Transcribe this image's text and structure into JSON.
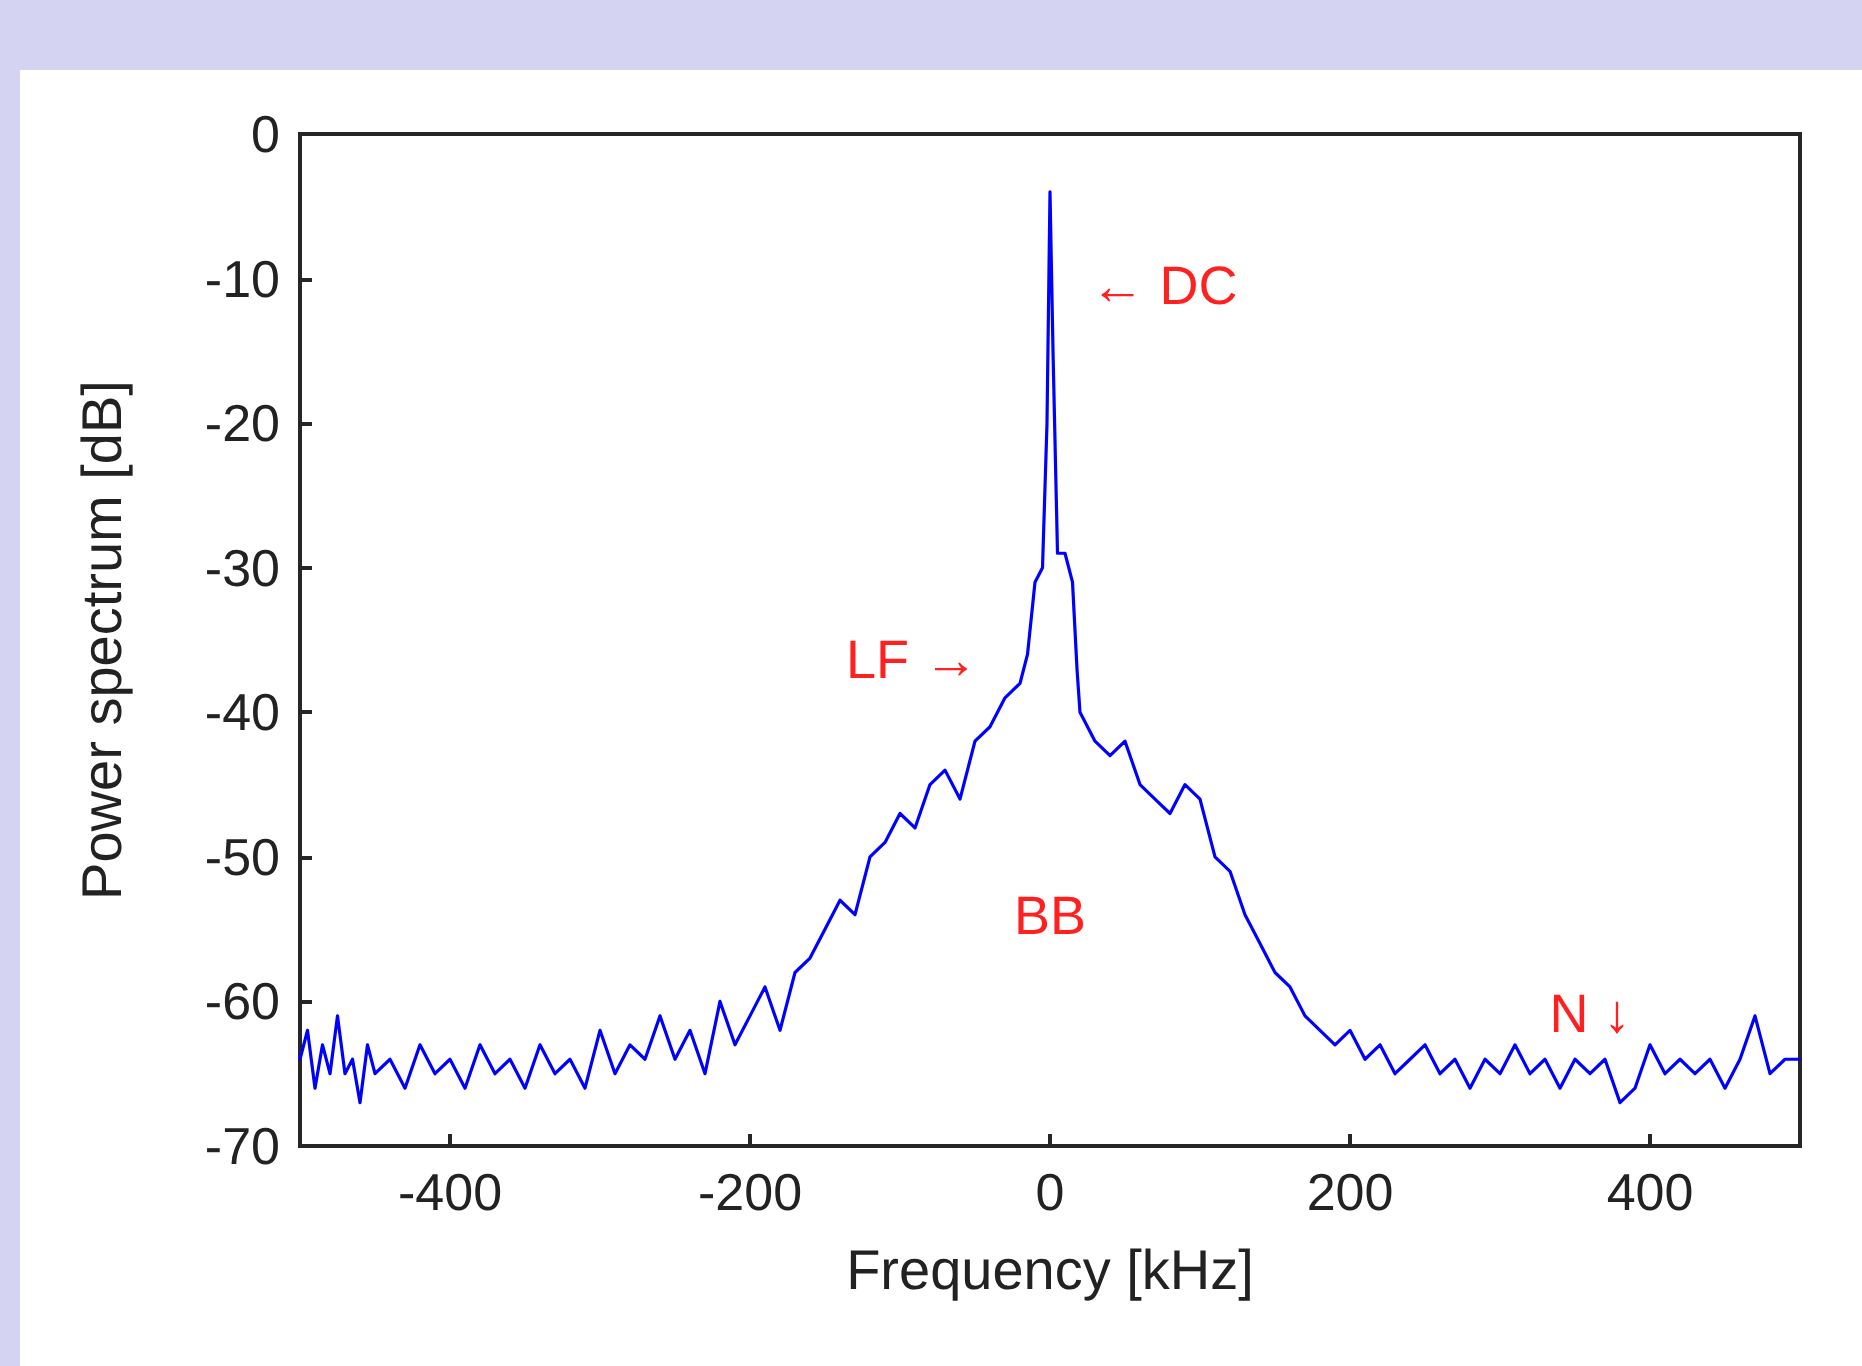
{
  "chart_data": {
    "type": "line",
    "xlabel": "Frequency [kHz]",
    "ylabel": "Power spectrum [dB]",
    "x": [
      -500,
      -495,
      -490,
      -485,
      -480,
      -475,
      -470,
      -465,
      -460,
      -455,
      -450,
      -440,
      -430,
      -420,
      -410,
      -400,
      -390,
      -380,
      -370,
      -360,
      -350,
      -340,
      -330,
      -320,
      -310,
      -300,
      -290,
      -280,
      -270,
      -260,
      -250,
      -240,
      -230,
      -220,
      -210,
      -200,
      -190,
      -180,
      -170,
      -160,
      -150,
      -140,
      -130,
      -120,
      -110,
      -100,
      -90,
      -80,
      -70,
      -60,
      -50,
      -40,
      -30,
      -20,
      -15,
      -10,
      -5,
      -2,
      0,
      2,
      5,
      10,
      15,
      18,
      20,
      30,
      40,
      50,
      60,
      70,
      80,
      90,
      100,
      110,
      120,
      130,
      140,
      150,
      160,
      170,
      180,
      190,
      200,
      210,
      220,
      230,
      240,
      250,
      260,
      270,
      280,
      290,
      300,
      310,
      320,
      330,
      340,
      350,
      360,
      370,
      380,
      390,
      400,
      410,
      420,
      430,
      440,
      450,
      460,
      470,
      480,
      490,
      500
    ],
    "series": [
      {
        "color": "#0000ff",
        "values": [
          -64,
          -62,
          -66,
          -63,
          -65,
          -61,
          -65,
          -64,
          -67,
          -63,
          -65,
          -64,
          -66,
          -63,
          -65,
          -64,
          -66,
          -63,
          -65,
          -64,
          -66,
          -63,
          -65,
          -64,
          -66,
          -62,
          -65,
          -63,
          -64,
          -61,
          -64,
          -62,
          -65,
          -60,
          -63,
          -61,
          -59,
          -62,
          -58,
          -57,
          -55,
          -53,
          -54,
          -50,
          -49,
          -47,
          -48,
          -45,
          -44,
          -46,
          -42,
          -41,
          -39,
          -38,
          -36,
          -31,
          -30,
          -20,
          -4,
          -15,
          -29,
          -29,
          -31,
          -37,
          -40,
          -42,
          -43,
          -42,
          -45,
          -46,
          -47,
          -45,
          -46,
          -50,
          -51,
          -54,
          -56,
          -58,
          -59,
          -61,
          -62,
          -63,
          -62,
          -64,
          -63,
          -65,
          -64,
          -63,
          -65,
          -64,
          -66,
          -64,
          -65,
          -63,
          -65,
          -64,
          -66,
          -64,
          -65,
          -64,
          -67,
          -66,
          -63,
          -65,
          -64,
          -65,
          -64,
          -66,
          -64,
          -61,
          -65,
          -64,
          -64
        ]
      }
    ],
    "xlim": [
      -500,
      500
    ],
    "xticks": [
      -400,
      -200,
      0,
      200,
      400
    ],
    "ylim": [
      -70,
      0
    ],
    "yticks": [
      -70,
      -60,
      -50,
      -40,
      -30,
      -20,
      -10,
      0
    ],
    "grid": false,
    "marker": "none",
    "line_style": "solid",
    "annotations": [
      "← DC",
      "LF →",
      "BB",
      "N ↓"
    ]
  }
}
